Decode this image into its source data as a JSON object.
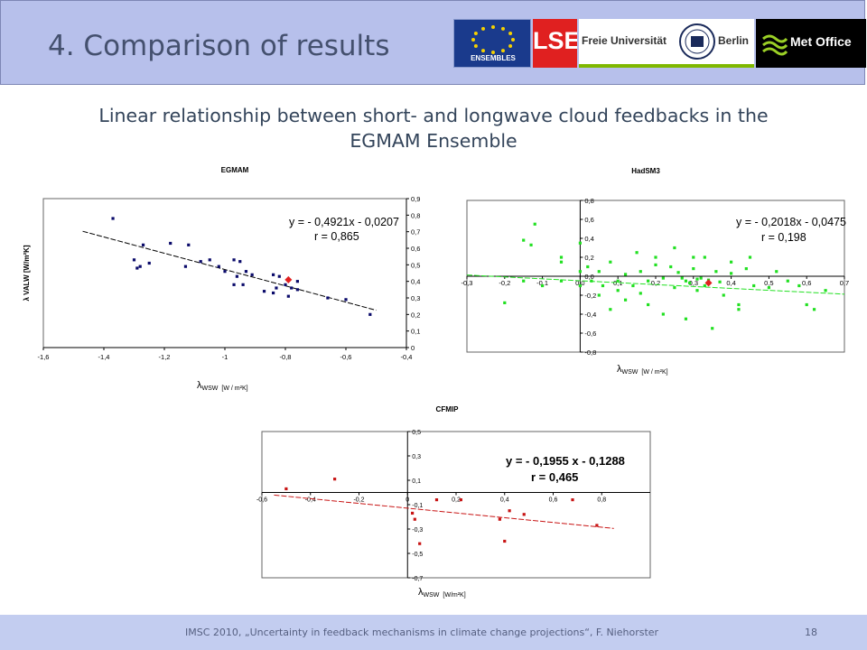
{
  "slide": {
    "title": "4. Comparison of results",
    "subtitle_line1": "Linear relationship between short- and longwave cloud feedbacks in the",
    "subtitle_line2": "EGMAM Ensemble"
  },
  "logos": {
    "ensembles": {
      "text": "ENSEMBLES",
      "bg": "#1a3a8c",
      "star": "#f5d000"
    },
    "lse": {
      "text": "LSE",
      "bg": "#e02020"
    },
    "fu_berlin": {
      "left": "Freie Universität",
      "right": "Berlin"
    },
    "met_office": {
      "text": "Met Office",
      "bg": "#000000"
    }
  },
  "footer": {
    "text": "IMSC 2010, „Uncertainty in feedback mechanisms in climate change projections“, F. Niehorster",
    "page": "18"
  },
  "chart_data": [
    {
      "id": "egmam",
      "type": "scatter",
      "title": "EGMAM",
      "xlabel_main": "λ",
      "xlabel_sub": "WSW",
      "xlabel_unit": "[W / m²K]",
      "ylabel": "λ VALW [W/m²K]",
      "xlim": [
        -1.6,
        -0.4
      ],
      "ylim": [
        0,
        0.9
      ],
      "xticks": [
        -1.6,
        -1.4,
        -1.2,
        -1.0,
        -0.8,
        -0.6,
        -0.4
      ],
      "xtick_labels": [
        "-1,6",
        "-1,4",
        "-1,2",
        "-1",
        "-0,8",
        "-0,6",
        "-0,4"
      ],
      "yticks": [
        0,
        0.1,
        0.2,
        0.3,
        0.4,
        0.5,
        0.6,
        0.7,
        0.8,
        0.9
      ],
      "ytick_labels": [
        "0",
        "0,1",
        "0,2",
        "0,3",
        "0,4",
        "0,5",
        "0,6",
        "0,7",
        "0,8",
        "0,9"
      ],
      "grid": false,
      "point_color": "#0a0a6a",
      "highlight_color": "#e02020",
      "line_color": "#000000",
      "regression": {
        "slope": -0.4921,
        "intercept": -0.0207,
        "x_range": [
          -1.47,
          -0.5
        ]
      },
      "equation": "y = - 0,4921x - 0,0207",
      "r_label": "r = 0,865",
      "points": [
        [
          -1.37,
          0.78
        ],
        [
          -1.27,
          0.62
        ],
        [
          -1.18,
          0.63
        ],
        [
          -1.3,
          0.53
        ],
        [
          -1.28,
          0.49
        ],
        [
          -1.29,
          0.48
        ],
        [
          -1.25,
          0.51
        ],
        [
          -1.12,
          0.62
        ],
        [
          -1.13,
          0.49
        ],
        [
          -1.08,
          0.52
        ],
        [
          -1.05,
          0.53
        ],
        [
          -1.02,
          0.49
        ],
        [
          -1.0,
          0.46
        ],
        [
          -0.97,
          0.53
        ],
        [
          -0.95,
          0.52
        ],
        [
          -0.93,
          0.46
        ],
        [
          -0.96,
          0.43
        ],
        [
          -0.97,
          0.38
        ],
        [
          -0.94,
          0.38
        ],
        [
          -0.91,
          0.44
        ],
        [
          -0.87,
          0.34
        ],
        [
          -0.83,
          0.36
        ],
        [
          -0.84,
          0.44
        ],
        [
          -0.82,
          0.43
        ],
        [
          -0.8,
          0.38
        ],
        [
          -0.78,
          0.36
        ],
        [
          -0.76,
          0.4
        ],
        [
          -0.79,
          0.31
        ],
        [
          -0.76,
          0.35
        ],
        [
          -0.84,
          0.33
        ],
        [
          -0.66,
          0.3
        ],
        [
          -0.6,
          0.29
        ],
        [
          -0.52,
          0.2
        ]
      ],
      "highlight_points": [
        [
          -0.79,
          0.41
        ]
      ]
    },
    {
      "id": "hadsm3",
      "type": "scatter",
      "title": "HadSM3",
      "xlabel_main": "λ",
      "xlabel_sub": "WSW",
      "xlabel_unit": "[W / m²K]",
      "xlim": [
        -0.3,
        0.7
      ],
      "ylim": [
        -0.8,
        0.8
      ],
      "xticks": [
        -0.3,
        -0.2,
        -0.1,
        0,
        0.1,
        0.2,
        0.3,
        0.4,
        0.5,
        0.6,
        0.7
      ],
      "xtick_labels": [
        "-0,3",
        "-0,2",
        "-0,1",
        "0,0",
        "0,1",
        "0,2",
        "0,3",
        "0,4",
        "0,5",
        "0,6",
        "0,7"
      ],
      "yticks": [
        -0.8,
        -0.6,
        -0.4,
        -0.2,
        0.0,
        0.2,
        0.4,
        0.6,
        0.8
      ],
      "ytick_labels": [
        "-0,8",
        "-0,6",
        "-0,4",
        "-0,2",
        "0,0",
        "0,2",
        "0,4",
        "0,6",
        "0,8"
      ],
      "grid": false,
      "point_color": "#22e022",
      "highlight_color": "#e02020",
      "line_color": "#22e022",
      "regression": {
        "slope": -0.2018,
        "intercept": -0.0475,
        "x_range": [
          -0.3,
          0.7
        ]
      },
      "equation": "y = - 0,2018x - 0,0475",
      "r_label": "r = 0,198",
      "points": [
        [
          -0.12,
          0.55
        ],
        [
          -0.15,
          0.38
        ],
        [
          -0.13,
          0.33
        ],
        [
          -0.05,
          0.2
        ],
        [
          0.0,
          0.35
        ],
        [
          0.02,
          0.1
        ],
        [
          0.05,
          0.05
        ],
        [
          0.08,
          0.15
        ],
        [
          0.1,
          -0.05
        ],
        [
          0.12,
          0.02
        ],
        [
          0.14,
          -0.1
        ],
        [
          0.16,
          0.05
        ],
        [
          0.18,
          -0.05
        ],
        [
          0.2,
          0.12
        ],
        [
          0.22,
          -0.02
        ],
        [
          0.24,
          0.1
        ],
        [
          0.25,
          -0.12
        ],
        [
          0.26,
          0.04
        ],
        [
          0.28,
          -0.05
        ],
        [
          0.3,
          0.08
        ],
        [
          0.31,
          -0.15
        ],
        [
          0.32,
          -0.02
        ],
        [
          0.33,
          0.2
        ],
        [
          0.34,
          -0.08
        ],
        [
          0.36,
          0.05
        ],
        [
          0.38,
          -0.2
        ],
        [
          0.4,
          0.03
        ],
        [
          0.42,
          -0.3
        ],
        [
          0.44,
          0.08
        ],
        [
          0.46,
          -0.1
        ],
        [
          0.5,
          -0.12
        ],
        [
          0.52,
          0.05
        ],
        [
          0.55,
          -0.05
        ],
        [
          0.58,
          -0.1
        ],
        [
          0.6,
          -0.3
        ],
        [
          0.62,
          -0.35
        ],
        [
          0.65,
          -0.15
        ],
        [
          -0.1,
          -0.1
        ],
        [
          -0.05,
          -0.05
        ],
        [
          0.0,
          -0.1
        ],
        [
          0.05,
          -0.2
        ],
        [
          0.08,
          -0.35
        ],
        [
          0.12,
          -0.25
        ],
        [
          0.18,
          -0.3
        ],
        [
          0.22,
          -0.4
        ],
        [
          0.28,
          -0.45
        ],
        [
          0.35,
          -0.55
        ],
        [
          0.42,
          -0.35
        ],
        [
          0.15,
          0.25
        ],
        [
          0.25,
          0.3
        ],
        [
          0.3,
          0.2
        ],
        [
          0.2,
          0.2
        ],
        [
          0.4,
          0.15
        ],
        [
          0.45,
          0.2
        ],
        [
          0.1,
          -0.15
        ],
        [
          -0.2,
          -0.28
        ],
        [
          -0.05,
          0.15
        ],
        [
          0.0,
          0.05
        ],
        [
          0.03,
          -0.05
        ],
        [
          0.27,
          -0.02
        ],
        [
          0.29,
          -0.07
        ],
        [
          0.33,
          -0.1
        ],
        [
          0.37,
          -0.06
        ],
        [
          0.34,
          -0.04
        ],
        [
          0.31,
          -0.03
        ],
        [
          -0.15,
          -0.05
        ],
        [
          0.06,
          -0.1
        ],
        [
          0.16,
          -0.18
        ]
      ],
      "highlight_points": [
        [
          0.34,
          -0.07
        ]
      ]
    },
    {
      "id": "cfmip",
      "type": "scatter",
      "title": "CFMIP",
      "xlabel_main": "λ",
      "xlabel_sub": "WSW",
      "xlabel_unit": "[W/m²K]",
      "xlim": [
        -0.6,
        1.0
      ],
      "ylim": [
        -0.7,
        0.5
      ],
      "xticks": [
        -0.6,
        -0.4,
        -0.2,
        0,
        0.2,
        0.4,
        0.6,
        0.8
      ],
      "xtick_labels": [
        "-0,6",
        "-0,4",
        "-0,2",
        "0",
        "0,2",
        "0,4",
        "0,6",
        "0,8"
      ],
      "yticks": [
        -0.7,
        -0.5,
        -0.3,
        -0.1,
        0.1,
        0.3,
        0.5
      ],
      "ytick_labels": [
        "-0,7",
        "-0,5",
        "-0,3",
        "-0,1",
        "0,1",
        "0,3",
        "0,5"
      ],
      "grid": false,
      "point_color": "#c81414",
      "highlight_color": "#c81414",
      "line_color": "#c81414",
      "regression": {
        "slope": -0.1955,
        "intercept": -0.1288,
        "x_range": [
          -0.55,
          0.85
        ]
      },
      "equation": "y = - 0,1955 x - 0,1288",
      "r_label": "r = 0,465",
      "points": [
        [
          -0.5,
          0.03
        ],
        [
          -0.3,
          0.11
        ],
        [
          0.02,
          -0.17
        ],
        [
          0.03,
          -0.22
        ],
        [
          0.05,
          -0.42
        ],
        [
          0.12,
          -0.06
        ],
        [
          0.22,
          -0.06
        ],
        [
          0.38,
          -0.22
        ],
        [
          0.42,
          -0.15
        ],
        [
          0.48,
          -0.18
        ],
        [
          0.4,
          -0.4
        ],
        [
          0.68,
          -0.06
        ],
        [
          0.78,
          -0.27
        ]
      ],
      "highlight_points": []
    }
  ]
}
